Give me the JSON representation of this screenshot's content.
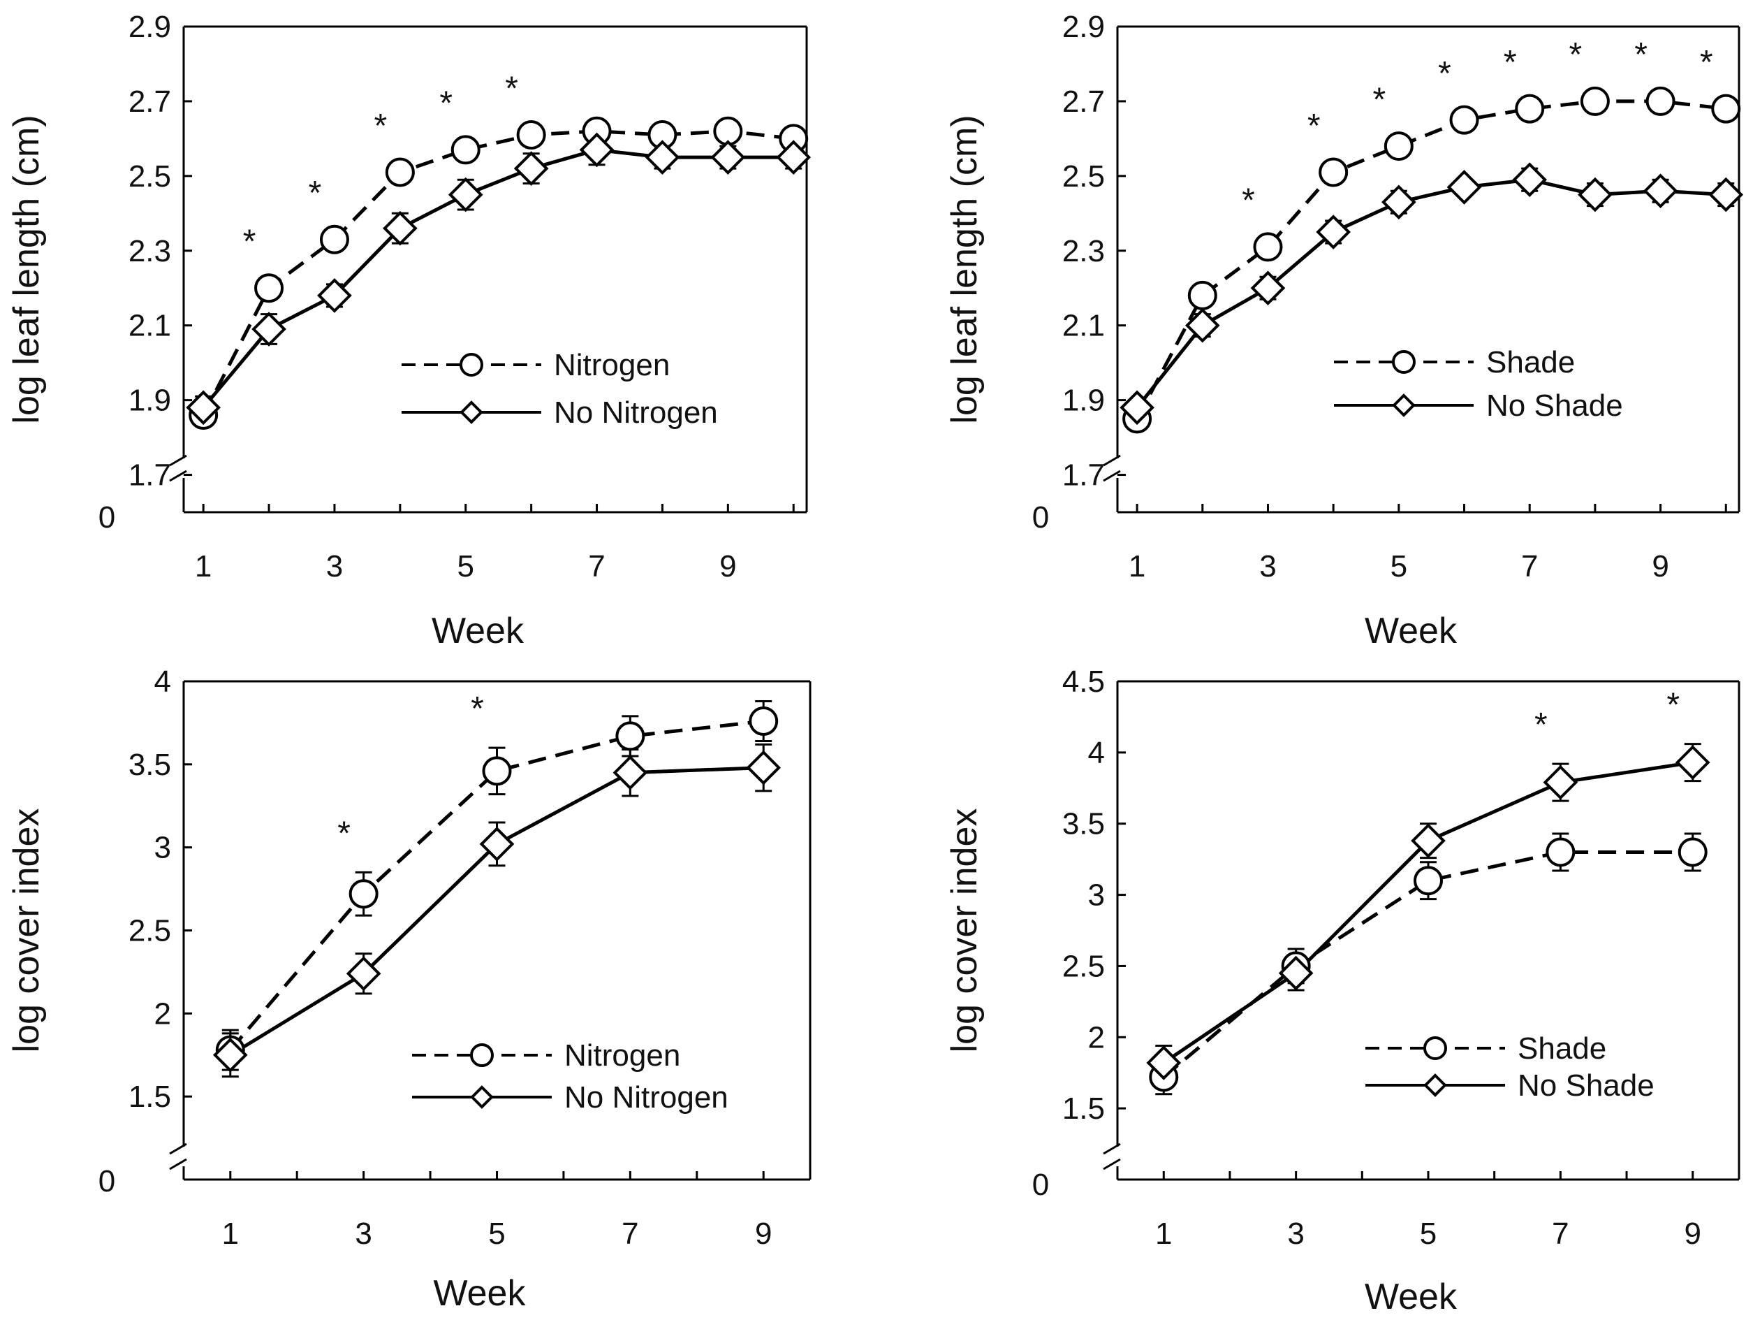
{
  "chart_data": [
    {
      "type": "line",
      "panel": "top-left",
      "xlabel": "Week",
      "ylabel": "log leaf length (cm)",
      "xlim": [
        0.7,
        10.2
      ],
      "ylim": [
        1.6,
        2.9
      ],
      "x_ticks": [
        "1",
        "3",
        "5",
        "7",
        "9"
      ],
      "y_ticks": [
        "2.9",
        "2.7",
        "2.5",
        "2.3",
        "2.1",
        "1.9",
        "1.7"
      ],
      "axis_break_label": "0",
      "legend_position": "center-right",
      "significance_marker": "*",
      "significant_weeks": [
        2,
        3,
        4,
        5,
        6
      ],
      "series": [
        {
          "name": "Nitrogen",
          "marker": "circle",
          "line": "dashed",
          "x": [
            1,
            2,
            3,
            4,
            5,
            6,
            7,
            8,
            9,
            10
          ],
          "values": [
            1.86,
            2.2,
            2.33,
            2.51,
            2.57,
            2.61,
            2.62,
            2.61,
            2.62,
            2.6
          ],
          "errors": [
            0.02,
            0.02,
            0.02,
            0.02,
            0.02,
            0.02,
            0.02,
            0.02,
            0.02,
            0.02
          ]
        },
        {
          "name": "No Nitrogen",
          "marker": "diamond",
          "line": "solid",
          "x": [
            1,
            2,
            3,
            4,
            5,
            6,
            7,
            8,
            9,
            10
          ],
          "values": [
            1.88,
            2.09,
            2.18,
            2.36,
            2.45,
            2.52,
            2.57,
            2.55,
            2.55,
            2.55
          ],
          "errors": [
            0.03,
            0.04,
            0.03,
            0.04,
            0.04,
            0.04,
            0.04,
            0.03,
            0.03,
            0.03
          ]
        }
      ]
    },
    {
      "type": "line",
      "panel": "top-right",
      "xlabel": "Week",
      "ylabel": "log leaf length (cm)",
      "xlim": [
        0.7,
        10.2
      ],
      "ylim": [
        1.6,
        2.9
      ],
      "x_ticks": [
        "1",
        "3",
        "5",
        "7",
        "9"
      ],
      "y_ticks": [
        "2.9",
        "2.7",
        "2.5",
        "2.3",
        "2.1",
        "1.9",
        "1.7"
      ],
      "axis_break_label": "0",
      "legend_position": "center-right",
      "significance_marker": "*",
      "significant_weeks": [
        3,
        4,
        5,
        6,
        7,
        8,
        9,
        10
      ],
      "series": [
        {
          "name": "Shade",
          "marker": "circle",
          "line": "dashed",
          "x": [
            1,
            2,
            3,
            4,
            5,
            6,
            7,
            8,
            9,
            10
          ],
          "values": [
            1.85,
            2.18,
            2.31,
            2.51,
            2.58,
            2.65,
            2.68,
            2.7,
            2.7,
            2.68
          ],
          "errors": [
            0.02,
            0.02,
            0.02,
            0.02,
            0.02,
            0.02,
            0.02,
            0.02,
            0.02,
            0.02
          ]
        },
        {
          "name": "No Shade",
          "marker": "diamond",
          "line": "solid",
          "x": [
            1,
            2,
            3,
            4,
            5,
            6,
            7,
            8,
            9,
            10
          ],
          "values": [
            1.88,
            2.1,
            2.2,
            2.35,
            2.43,
            2.47,
            2.49,
            2.45,
            2.46,
            2.45
          ],
          "errors": [
            0.02,
            0.03,
            0.03,
            0.03,
            0.03,
            0.02,
            0.03,
            0.03,
            0.03,
            0.03
          ]
        }
      ]
    },
    {
      "type": "line",
      "panel": "bottom-left",
      "xlabel": "Week",
      "ylabel": "log cover index",
      "xlim": [
        0.3,
        9.7
      ],
      "ylim": [
        1.0,
        4.0
      ],
      "x_ticks": [
        "1",
        "3",
        "5",
        "7",
        "9"
      ],
      "y_ticks": [
        "4",
        "3.5",
        "3",
        "2.5",
        "2",
        "1.5"
      ],
      "axis_break_label": "0",
      "legend_position": "bottom-right",
      "significance_marker": "*",
      "significant_weeks": [
        3,
        5
      ],
      "series": [
        {
          "name": "Nitrogen",
          "marker": "circle",
          "line": "dashed",
          "x": [
            1,
            3,
            5,
            7,
            9
          ],
          "values": [
            1.78,
            2.72,
            3.46,
            3.67,
            3.76
          ],
          "errors": [
            0.12,
            0.13,
            0.14,
            0.12,
            0.12
          ]
        },
        {
          "name": "No Nitrogen",
          "marker": "diamond",
          "line": "solid",
          "x": [
            1,
            3,
            5,
            7,
            9
          ],
          "values": [
            1.75,
            2.24,
            3.02,
            3.45,
            3.48
          ],
          "errors": [
            0.13,
            0.12,
            0.13,
            0.14,
            0.14
          ]
        }
      ]
    },
    {
      "type": "line",
      "panel": "bottom-right",
      "xlabel": "Week",
      "ylabel": "log cover index",
      "xlim": [
        0.3,
        9.7
      ],
      "ylim": [
        1.0,
        4.5
      ],
      "x_ticks": [
        "1",
        "3",
        "5",
        "7",
        "9"
      ],
      "y_ticks": [
        "4.5",
        "4",
        "3.5",
        "3",
        "2.5",
        "2",
        "1.5"
      ],
      "axis_break_label": "0",
      "legend_position": "bottom-right",
      "significance_marker": "*",
      "significant_weeks": [
        7,
        9
      ],
      "series": [
        {
          "name": "Shade",
          "marker": "circle",
          "line": "dashed",
          "x": [
            1,
            3,
            5,
            7,
            9
          ],
          "values": [
            1.72,
            2.5,
            3.1,
            3.3,
            3.3
          ],
          "errors": [
            0.12,
            0.12,
            0.13,
            0.13,
            0.13
          ]
        },
        {
          "name": "No Shade",
          "marker": "diamond",
          "line": "solid",
          "x": [
            1,
            3,
            5,
            7,
            9
          ],
          "values": [
            1.82,
            2.45,
            3.38,
            3.79,
            3.93
          ],
          "errors": [
            0.12,
            0.12,
            0.12,
            0.13,
            0.13
          ]
        }
      ]
    }
  ]
}
